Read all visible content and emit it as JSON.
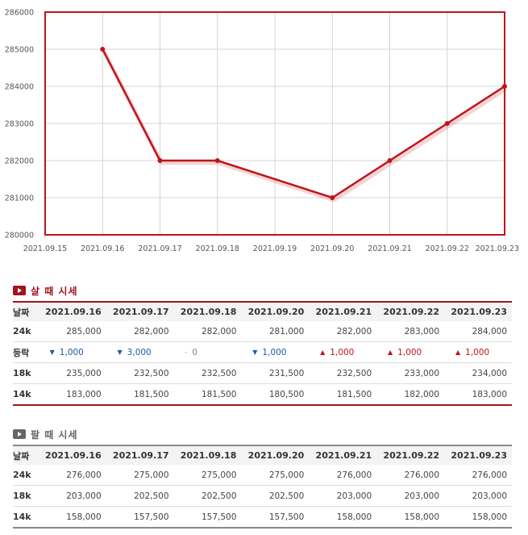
{
  "chart_data": {
    "type": "line",
    "x": [
      "2021.09.15",
      "2021.09.16",
      "2021.09.17",
      "2021.09.18",
      "2021.09.19",
      "2021.09.20",
      "2021.09.21",
      "2021.09.22",
      "2021.09.23"
    ],
    "series": [
      {
        "values": [
          null,
          285000,
          282000,
          282000,
          null,
          281000,
          282000,
          283000,
          284000
        ]
      }
    ],
    "y_ticks": [
      "280000",
      "281000",
      "282000",
      "283000",
      "284000",
      "285000",
      "286000"
    ],
    "ylim": [
      280000,
      286000
    ],
    "grid": true,
    "colors": {
      "line": "#c0141a",
      "frame": "#c0141a",
      "grid": "#d4d4d4"
    }
  },
  "buy": {
    "title": "살 때 시세",
    "headers": [
      "날짜",
      "2021.09.16",
      "2021.09.17",
      "2021.09.18",
      "2021.09.20",
      "2021.09.21",
      "2021.09.22",
      "2021.09.23"
    ],
    "rows": [
      {
        "label": "24k",
        "values": [
          "285,000",
          "282,000",
          "282,000",
          "281,000",
          "282,000",
          "283,000",
          "284,000"
        ]
      },
      {
        "label": "등락",
        "changes": [
          {
            "dir": "down",
            "arrow": "▼",
            "value": "1,000"
          },
          {
            "dir": "down",
            "arrow": "▼",
            "value": "3,000"
          },
          {
            "dir": "flat",
            "arrow": "-",
            "value": "0"
          },
          {
            "dir": "down",
            "arrow": "▼",
            "value": "1,000"
          },
          {
            "dir": "up",
            "arrow": "▲",
            "value": "1,000"
          },
          {
            "dir": "up",
            "arrow": "▲",
            "value": "1,000"
          },
          {
            "dir": "up",
            "arrow": "▲",
            "value": "1,000"
          }
        ]
      },
      {
        "label": "18k",
        "values": [
          "235,000",
          "232,500",
          "232,500",
          "231,500",
          "232,500",
          "233,000",
          "234,000"
        ]
      },
      {
        "label": "14k",
        "values": [
          "183,000",
          "181,500",
          "181,500",
          "180,500",
          "181,500",
          "182,000",
          "183,000"
        ]
      }
    ]
  },
  "sell": {
    "title": "팔 때 시세",
    "headers": [
      "날짜",
      "2021.09.16",
      "2021.09.17",
      "2021.09.18",
      "2021.09.20",
      "2021.09.21",
      "2021.09.22",
      "2021.09.23"
    ],
    "rows": [
      {
        "label": "24k",
        "values": [
          "276,000",
          "275,000",
          "275,000",
          "275,000",
          "276,000",
          "276,000",
          "276,000"
        ]
      },
      {
        "label": "18k",
        "values": [
          "203,000",
          "202,500",
          "202,500",
          "202,500",
          "203,000",
          "203,000",
          "203,000"
        ]
      },
      {
        "label": "14k",
        "values": [
          "158,000",
          "157,500",
          "157,500",
          "157,500",
          "158,000",
          "158,000",
          "158,000"
        ]
      }
    ]
  }
}
